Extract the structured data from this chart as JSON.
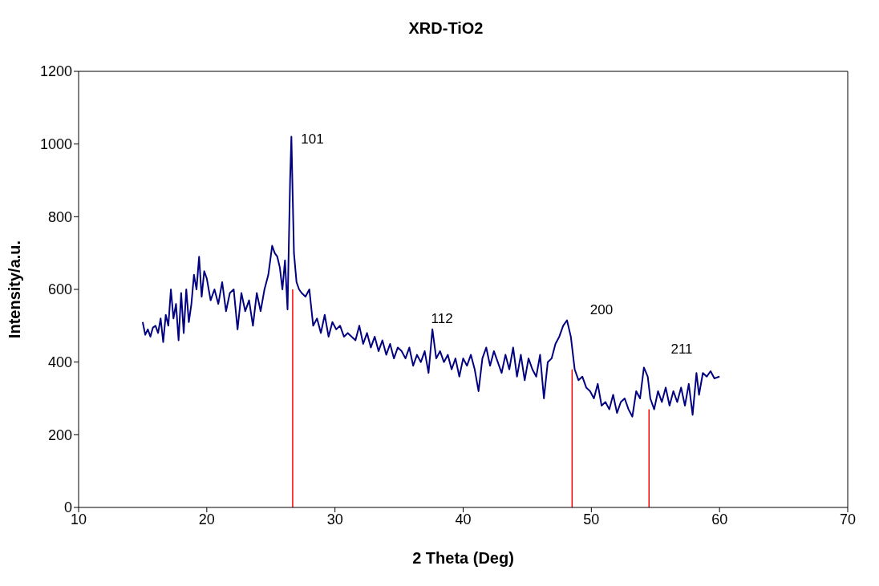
{
  "chart_data": {
    "type": "line",
    "title": "XRD-TiO2",
    "xlabel": "2 Theta (Deg)",
    "ylabel": "Intensity/a.u.",
    "xlim": [
      10,
      70
    ],
    "xticks": [
      10,
      20,
      30,
      40,
      50,
      60,
      70
    ],
    "ylim": [
      0,
      1200
    ],
    "yticks": [
      0,
      200,
      400,
      600,
      800,
      1000,
      1200
    ],
    "grid": false,
    "marker": "none",
    "series": [
      {
        "color": "#000080",
        "x": [
          15,
          15.2,
          15.4,
          15.6,
          15.8,
          16,
          16.2,
          16.4,
          16.6,
          16.8,
          17,
          17.2,
          17.4,
          17.6,
          17.8,
          18,
          18.2,
          18.4,
          18.6,
          18.8,
          19,
          19.2,
          19.4,
          19.6,
          19.8,
          20,
          20.3,
          20.6,
          20.9,
          21.2,
          21.5,
          21.8,
          22.1,
          22.4,
          22.7,
          23,
          23.3,
          23.6,
          23.9,
          24.2,
          24.5,
          24.8,
          25.1,
          25.3,
          25.5,
          25.7,
          25.9,
          26.1,
          26.3,
          26.5,
          26.6,
          26.8,
          27,
          27.2,
          27.4,
          27.7,
          28,
          28.3,
          28.6,
          28.9,
          29.2,
          29.5,
          29.8,
          30.1,
          30.4,
          30.7,
          31,
          31.3,
          31.6,
          31.9,
          32.2,
          32.5,
          32.8,
          33.1,
          33.4,
          33.7,
          34,
          34.3,
          34.6,
          34.9,
          35.2,
          35.5,
          35.8,
          36.1,
          36.4,
          36.7,
          37,
          37.3,
          37.6,
          37.9,
          38.2,
          38.5,
          38.8,
          39.1,
          39.4,
          39.7,
          40,
          40.3,
          40.6,
          40.9,
          41.2,
          41.5,
          41.8,
          42.1,
          42.4,
          42.7,
          43,
          43.3,
          43.6,
          43.9,
          44.2,
          44.5,
          44.8,
          45.1,
          45.4,
          45.7,
          46,
          46.3,
          46.6,
          46.9,
          47.2,
          47.5,
          47.8,
          48.1,
          48.4,
          48.7,
          49,
          49.3,
          49.6,
          49.9,
          50.2,
          50.5,
          50.8,
          51.1,
          51.4,
          51.7,
          52,
          52.3,
          52.6,
          52.9,
          53.2,
          53.5,
          53.8,
          54.1,
          54.4,
          54.6,
          54.9,
          55.2,
          55.5,
          55.8,
          56.1,
          56.4,
          56.7,
          57,
          57.3,
          57.6,
          57.9,
          58.2,
          58.4,
          58.7,
          59,
          59.3,
          59.6,
          60
        ],
        "values": [
          510,
          475,
          490,
          470,
          495,
          500,
          480,
          520,
          455,
          530,
          500,
          600,
          520,
          560,
          460,
          590,
          480,
          600,
          510,
          560,
          640,
          600,
          690,
          580,
          650,
          630,
          570,
          600,
          560,
          620,
          540,
          590,
          600,
          490,
          590,
          540,
          570,
          500,
          590,
          540,
          600,
          640,
          720,
          700,
          690,
          660,
          600,
          680,
          545,
          900,
          1020,
          700,
          620,
          600,
          590,
          580,
          600,
          500,
          520,
          480,
          530,
          470,
          510,
          490,
          500,
          470,
          480,
          470,
          460,
          500,
          450,
          480,
          440,
          470,
          430,
          460,
          420,
          450,
          410,
          440,
          430,
          410,
          440,
          390,
          420,
          400,
          430,
          370,
          490,
          410,
          430,
          400,
          420,
          380,
          410,
          360,
          410,
          390,
          420,
          380,
          320,
          410,
          440,
          390,
          430,
          400,
          370,
          420,
          380,
          440,
          360,
          420,
          350,
          410,
          380,
          360,
          420,
          300,
          400,
          410,
          450,
          470,
          500,
          515,
          470,
          380,
          350,
          360,
          330,
          320,
          300,
          340,
          280,
          290,
          270,
          310,
          260,
          290,
          300,
          270,
          250,
          320,
          300,
          385,
          360,
          300,
          270,
          320,
          290,
          330,
          280,
          320,
          290,
          330,
          280,
          340,
          255,
          370,
          310,
          370,
          360,
          375,
          355,
          360
        ]
      },
      {
        "color": "#ff0000",
        "x": [
          26.7,
          26.7
        ],
        "values": [
          0,
          600
        ]
      },
      {
        "color": "#ff0000",
        "x": [
          48.5,
          48.5
        ],
        "values": [
          0,
          380
        ]
      },
      {
        "color": "#ff0000",
        "x": [
          54.5,
          54.5
        ],
        "values": [
          0,
          270
        ]
      }
    ],
    "annotations": [
      {
        "text": "101",
        "x": 26.6,
        "y": 1020
      },
      {
        "text": "112",
        "x": 37.6,
        "y": 490
      },
      "200",
      "211"
    ]
  }
}
